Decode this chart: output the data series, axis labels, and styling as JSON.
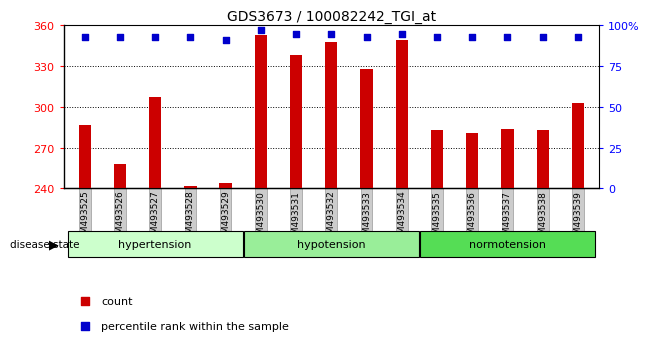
{
  "title": "GDS3673 / 100082242_TGI_at",
  "samples": [
    "GSM493525",
    "GSM493526",
    "GSM493527",
    "GSM493528",
    "GSM493529",
    "GSM493530",
    "GSM493531",
    "GSM493532",
    "GSM493533",
    "GSM493534",
    "GSM493535",
    "GSM493536",
    "GSM493537",
    "GSM493538",
    "GSM493539"
  ],
  "counts": [
    287,
    258,
    307,
    242,
    244,
    353,
    338,
    348,
    328,
    349,
    283,
    281,
    284,
    283,
    303
  ],
  "percentiles": [
    93,
    93,
    93,
    93,
    91,
    97,
    95,
    95,
    93,
    95,
    93,
    93,
    93,
    93,
    93
  ],
  "group_defs": [
    {
      "label": "hypertension",
      "start": 0,
      "end": 4,
      "color": "#ccffcc"
    },
    {
      "label": "hypotension",
      "start": 5,
      "end": 9,
      "color": "#99ee99"
    },
    {
      "label": "normotension",
      "start": 10,
      "end": 14,
      "color": "#55dd55"
    }
  ],
  "ylim_left": [
    240,
    360
  ],
  "yticks_left": [
    240,
    270,
    300,
    330,
    360
  ],
  "ylim_right": [
    0,
    100
  ],
  "yticks_right": [
    0,
    25,
    50,
    75,
    100
  ],
  "bar_color": "#cc0000",
  "dot_color": "#0000cc",
  "legend_items": [
    {
      "color": "#cc0000",
      "label": "count"
    },
    {
      "color": "#0000cc",
      "label": "percentile rank within the sample"
    }
  ]
}
